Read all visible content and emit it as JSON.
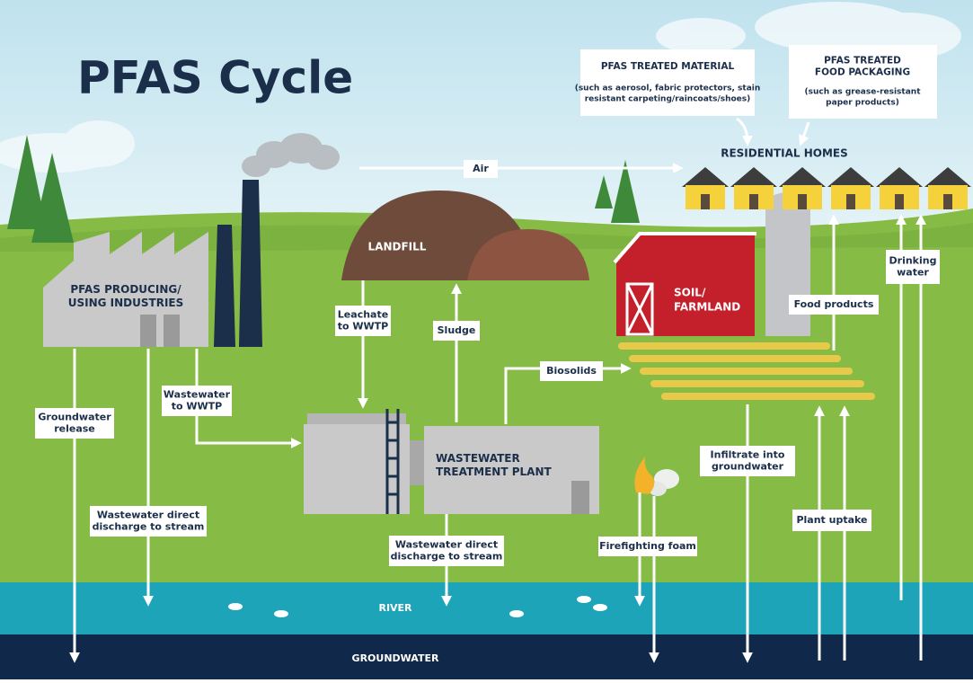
{
  "title": "PFAS Cycle",
  "callouts": [
    {
      "heading": [
        "PFAS TREATED MATERIAL"
      ],
      "detail": [
        "(such as aerosol, fabric protectors, stain",
        "resistant carpeting/raincoats/shoes)"
      ]
    },
    {
      "heading": [
        "PFAS TREATED",
        "FOOD PACKAGING"
      ],
      "detail": [
        "(such as grease-resistant",
        "paper products)"
      ]
    }
  ],
  "places": {
    "homes": [
      "RESIDENTIAL HOMES"
    ],
    "landfill": [
      "LANDFILL"
    ],
    "industries": [
      "PFAS PRODUCING/",
      "USING INDUSTRIES"
    ],
    "farmland": [
      "SOIL/",
      "FARMLAND"
    ],
    "wwtp": [
      "WASTEWATER",
      "TREATMENT PLANT"
    ],
    "river": [
      "RIVER"
    ],
    "groundwater": [
      "GROUNDWATER"
    ]
  },
  "flows": {
    "air": [
      "Air"
    ],
    "leachate": [
      "Leachate",
      "to WWTP"
    ],
    "sludge": [
      "Sludge"
    ],
    "biosolids": [
      "Biosolids"
    ],
    "food_products": [
      "Food products"
    ],
    "drinking_water": [
      "Drinking",
      "water"
    ],
    "wastewater_to_wwtp": [
      "Wastewater",
      "to WWTP"
    ],
    "groundwater_release": [
      "Groundwater",
      "release"
    ],
    "infiltrate": [
      "Infiltrate into",
      "groundwater"
    ],
    "discharge_industry": [
      "Wastewater direct",
      "discharge to stream"
    ],
    "discharge_wwtp": [
      "Wastewater direct",
      "discharge to stream"
    ],
    "firefighting_foam": [
      "Firefighting foam"
    ],
    "plant_uptake": [
      "Plant uptake"
    ]
  }
}
